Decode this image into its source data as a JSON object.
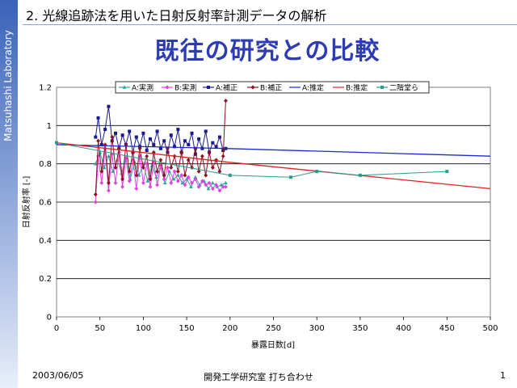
{
  "sidebar": {
    "text": "Matsuhashi Laboratory"
  },
  "heading": {
    "number": "2.",
    "text": "光線追跡法を用いた日射反射率計測データの解析"
  },
  "title": "既往の研究との比較",
  "footer": {
    "date": "2003/06/05",
    "center": "開発工学研究室 打ち合わせ",
    "page": "1"
  },
  "chart_data": {
    "type": "line",
    "xlabel": "暴露日数[d]",
    "ylabel": "日射反射率 [-]",
    "xlim": [
      0,
      500
    ],
    "ylim": [
      0,
      1.2
    ],
    "xticks": [
      "0",
      "50",
      "100",
      "150",
      "200",
      "250",
      "300",
      "350",
      "400",
      "450",
      "500"
    ],
    "yticks": [
      "0",
      "0.2",
      "0.4",
      "0.6",
      "0.8",
      "1",
      "1.2"
    ],
    "grid": "horizontal",
    "legend_position": "top",
    "series": [
      {
        "name": "A:実測",
        "color": "#2fa6a6",
        "marker": "triangle",
        "x": [
          45,
          50,
          55,
          60,
          65,
          70,
          75,
          80,
          85,
          90,
          95,
          100,
          105,
          110,
          115,
          120,
          125,
          130,
          135,
          140,
          145,
          150,
          155,
          160,
          165,
          170,
          175,
          180,
          185,
          190,
          195
        ],
        "y": [
          0.8,
          0.86,
          0.78,
          0.84,
          0.76,
          0.82,
          0.75,
          0.83,
          0.72,
          0.81,
          0.74,
          0.8,
          0.71,
          0.79,
          0.73,
          0.78,
          0.7,
          0.76,
          0.72,
          0.74,
          0.7,
          0.72,
          0.68,
          0.73,
          0.69,
          0.71,
          0.67,
          0.7,
          0.68,
          0.69,
          0.7
        ]
      },
      {
        "name": "B:実測",
        "color": "#e040e0",
        "marker": "diamond",
        "x": [
          45,
          48,
          52,
          56,
          60,
          64,
          68,
          72,
          76,
          80,
          84,
          88,
          92,
          96,
          100,
          104,
          108,
          112,
          116,
          120,
          124,
          128,
          132,
          136,
          140,
          144,
          148,
          152,
          156,
          160,
          164,
          168,
          172,
          176,
          180,
          184,
          188,
          192,
          195
        ],
        "y": [
          0.6,
          0.84,
          0.7,
          0.88,
          0.66,
          0.85,
          0.7,
          0.86,
          0.68,
          0.83,
          0.71,
          0.82,
          0.67,
          0.84,
          0.7,
          0.8,
          0.68,
          0.81,
          0.69,
          0.79,
          0.72,
          0.78,
          0.7,
          0.76,
          0.71,
          0.74,
          0.69,
          0.73,
          0.7,
          0.72,
          0.68,
          0.71,
          0.69,
          0.7,
          0.67,
          0.69,
          0.66,
          0.68,
          0.68
        ]
      },
      {
        "name": "A:補正",
        "color": "#1a1a8a",
        "marker": "square",
        "x": [
          45,
          48,
          52,
          56,
          60,
          64,
          68,
          72,
          76,
          80,
          84,
          88,
          92,
          96,
          100,
          104,
          108,
          112,
          116,
          120,
          124,
          128,
          132,
          136,
          140,
          144,
          148,
          152,
          156,
          160,
          164,
          168,
          172,
          176,
          180,
          184,
          188,
          192,
          195
        ],
        "y": [
          0.94,
          1.04,
          0.9,
          0.98,
          1.1,
          0.92,
          0.96,
          0.88,
          0.95,
          0.9,
          0.97,
          0.86,
          0.94,
          0.89,
          0.96,
          0.87,
          0.93,
          0.9,
          0.97,
          0.88,
          0.92,
          0.86,
          0.95,
          0.89,
          0.98,
          0.86,
          0.92,
          0.9,
          0.96,
          0.85,
          0.93,
          0.88,
          0.97,
          0.86,
          0.91,
          0.89,
          0.94,
          0.87,
          0.88
        ]
      },
      {
        "name": "B:補正",
        "color": "#8b1020",
        "marker": "diamond",
        "x": [
          45,
          48,
          52,
          56,
          60,
          64,
          68,
          72,
          76,
          80,
          84,
          88,
          92,
          96,
          100,
          104,
          108,
          112,
          116,
          120,
          124,
          128,
          132,
          136,
          140,
          144,
          148,
          152,
          156,
          160,
          164,
          168,
          172,
          176,
          180,
          184,
          188,
          192,
          195
        ],
        "y": [
          0.64,
          0.92,
          0.76,
          0.9,
          0.7,
          0.94,
          0.78,
          0.88,
          0.72,
          0.9,
          0.76,
          0.86,
          0.74,
          0.88,
          0.78,
          0.84,
          0.72,
          0.86,
          0.76,
          0.82,
          0.74,
          0.88,
          0.78,
          0.84,
          0.76,
          0.86,
          0.74,
          0.82,
          0.78,
          0.88,
          0.76,
          0.84,
          0.74,
          0.86,
          0.78,
          0.82,
          0.76,
          0.84,
          1.13
        ]
      },
      {
        "name": "A:推定",
        "color": "#1a2ccc",
        "marker": "none",
        "x": [
          0,
          195,
          500
        ],
        "y": [
          0.9,
          0.88,
          0.84
        ]
      },
      {
        "name": "B:推定",
        "color": "#dd2222",
        "marker": "none",
        "x": [
          0,
          195,
          500
        ],
        "y": [
          0.91,
          0.81,
          0.67
        ]
      },
      {
        "name": "二階堂ら",
        "color": "#2a9a8a",
        "marker": "square",
        "x": [
          0,
          200,
          270,
          300,
          350,
          450
        ],
        "y": [
          0.91,
          0.74,
          0.73,
          0.76,
          0.74,
          0.76
        ]
      }
    ]
  }
}
